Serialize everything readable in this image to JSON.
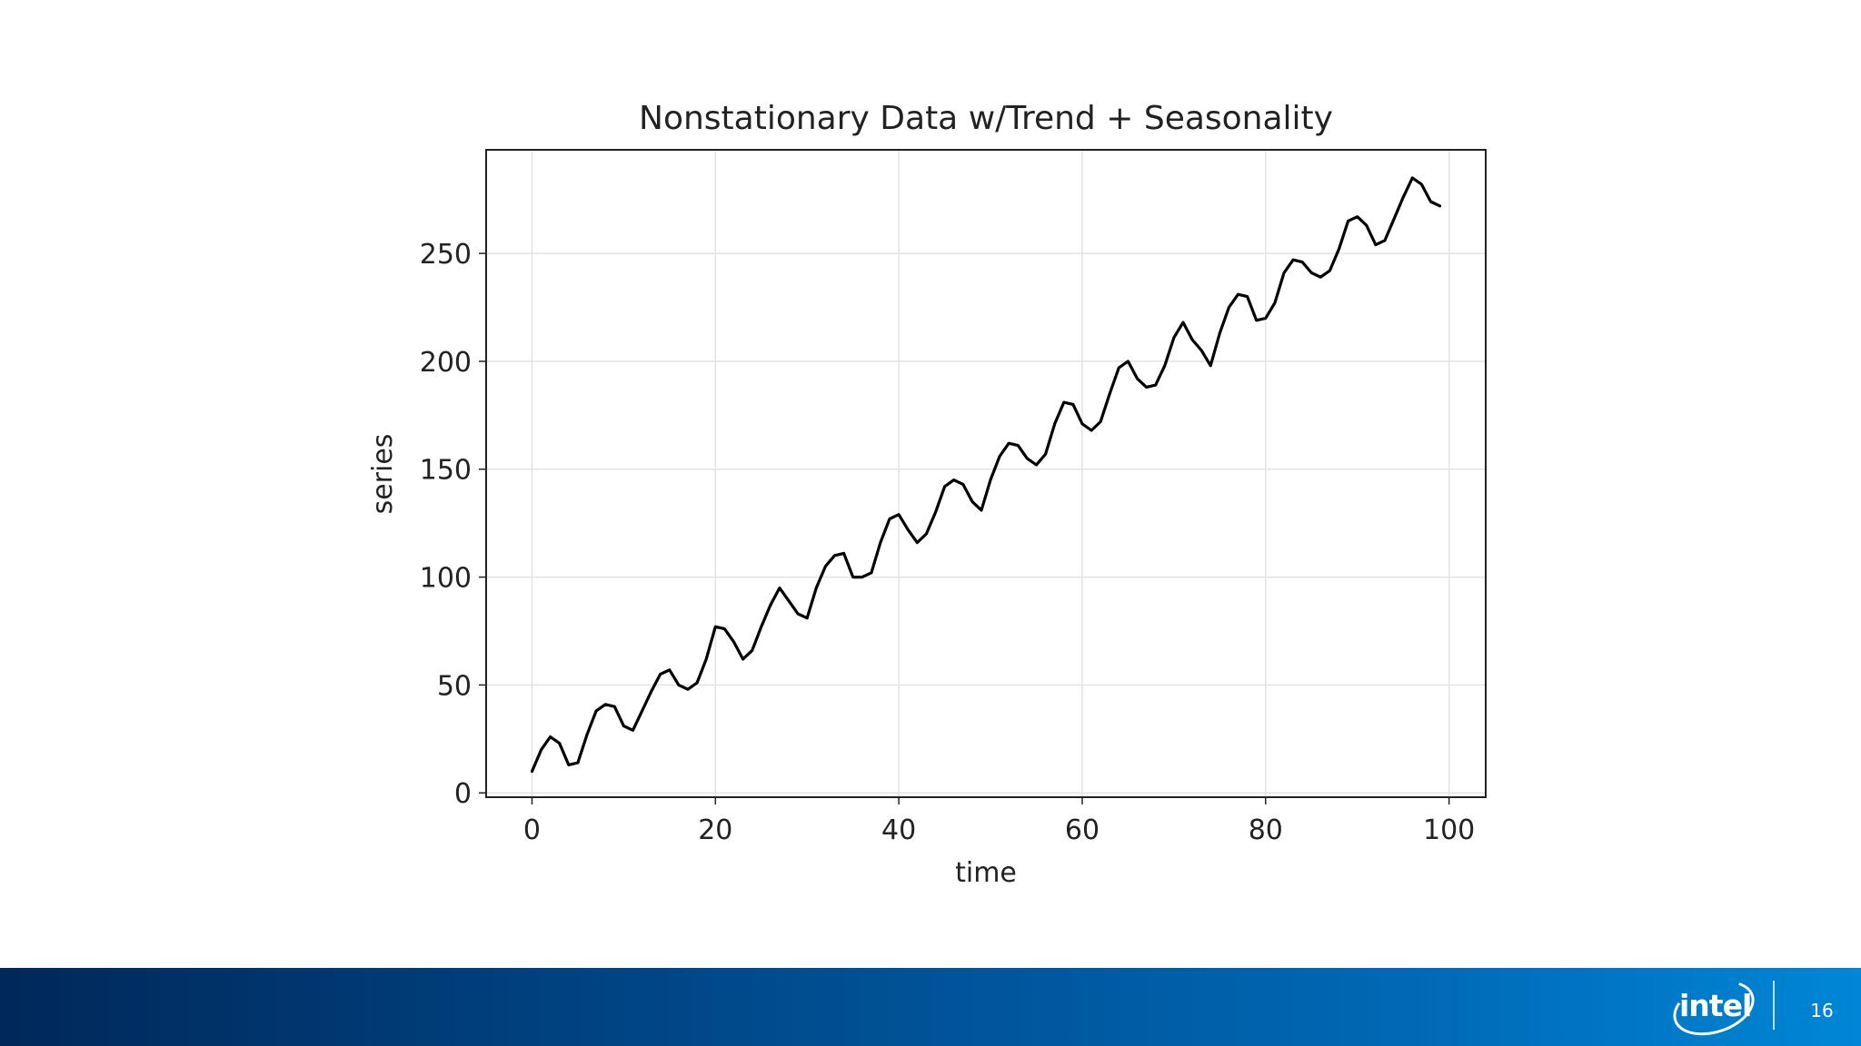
{
  "chart_data": {
    "type": "line",
    "title": "Nonstationary Data w/Trend + Seasonality",
    "xlabel": "time",
    "ylabel": "series",
    "xlim": [
      -5,
      104
    ],
    "ylim": [
      -2,
      298
    ],
    "xticks": [
      0,
      20,
      40,
      60,
      80,
      100
    ],
    "yticks": [
      0,
      50,
      100,
      150,
      200,
      250
    ],
    "xtick_labels": [
      "0",
      "20",
      "40",
      "60",
      "80",
      "100"
    ],
    "ytick_labels": [
      "0",
      "50",
      "100",
      "150",
      "200",
      "250"
    ],
    "grid": true,
    "line_color": "#000000",
    "series": [
      {
        "name": "series",
        "x": [
          0,
          1,
          2,
          3,
          4,
          5,
          6,
          7,
          8,
          9,
          10,
          11,
          12,
          13,
          14,
          15,
          16,
          17,
          18,
          19,
          20,
          21,
          22,
          23,
          24,
          25,
          26,
          27,
          28,
          29,
          30,
          31,
          32,
          33,
          34,
          35,
          36,
          37,
          38,
          39,
          40,
          41,
          42,
          43,
          44,
          45,
          46,
          47,
          48,
          49,
          50,
          51,
          52,
          53,
          54,
          55,
          56,
          57,
          58,
          59,
          60,
          61,
          62,
          63,
          64,
          65,
          66,
          67,
          68,
          69,
          70,
          71,
          72,
          73,
          74,
          75,
          76,
          77,
          78,
          79,
          80,
          81,
          82,
          83,
          84,
          85,
          86,
          87,
          88,
          89,
          90,
          91,
          92,
          93,
          94,
          95,
          96,
          97,
          98,
          99
        ],
        "values": [
          10,
          20,
          26,
          23,
          13,
          14,
          27,
          38,
          41,
          40,
          31,
          29,
          38,
          47,
          55,
          57,
          50,
          48,
          51,
          62,
          77,
          76,
          70,
          62,
          66,
          77,
          87,
          95,
          89,
          83,
          81,
          95,
          105,
          110,
          111,
          100,
          100,
          102,
          116,
          127,
          129,
          122,
          116,
          120,
          130,
          142,
          145,
          143,
          135,
          131,
          145,
          156,
          162,
          161,
          155,
          152,
          157,
          171,
          181,
          180,
          171,
          168,
          172,
          185,
          197,
          200,
          192,
          188,
          189,
          198,
          211,
          218,
          210,
          205,
          198,
          213,
          225,
          231,
          230,
          219,
          220,
          227,
          241,
          247,
          246,
          241,
          239,
          242,
          252,
          265,
          267,
          263,
          254,
          256,
          266,
          276,
          285,
          282,
          274,
          272
        ]
      }
    ]
  },
  "footer": {
    "logo_text": "intel",
    "page_number": "16",
    "bar_colors": [
      "#00285a",
      "#0086d6"
    ]
  }
}
